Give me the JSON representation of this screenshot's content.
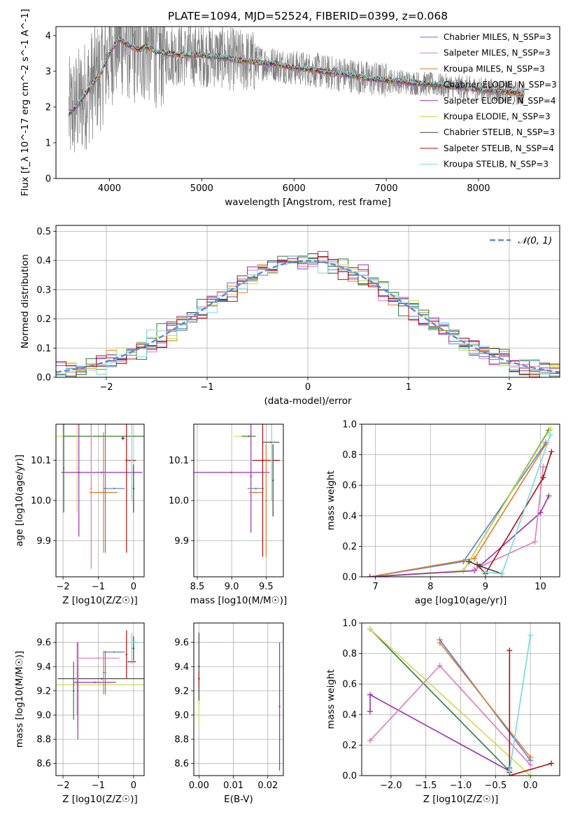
{
  "chart_data": [
    {
      "id": "spectrum",
      "type": "line",
      "title": "PLATE=1094, MJD=52524, FIBERID=0399, z=0.068",
      "xlabel": "wavelength [Angstrom, rest frame]",
      "ylabel": "Flux [f_λ 10^-17 erg cm^-2 s^-1 A^-1]",
      "xlim": [
        3420,
        8880
      ],
      "ylim": [
        0,
        4.25
      ],
      "xticks": [
        4000,
        5000,
        6000,
        7000,
        8000
      ],
      "yticks": [
        0,
        1,
        2,
        3,
        4
      ],
      "grid": false,
      "legend_position": "right",
      "data_color": "#808080",
      "continuum": [
        [
          3560,
          1.8
        ],
        [
          3700,
          2.2
        ],
        [
          3800,
          2.6
        ],
        [
          3900,
          2.9
        ],
        [
          4000,
          3.5
        ],
        [
          4100,
          3.9
        ],
        [
          4200,
          3.75
        ],
        [
          4300,
          3.6
        ],
        [
          4400,
          3.7
        ],
        [
          4500,
          3.55
        ],
        [
          4600,
          3.5
        ],
        [
          4800,
          3.45
        ],
        [
          5000,
          3.45
        ],
        [
          5200,
          3.4
        ],
        [
          5400,
          3.3
        ],
        [
          5600,
          3.25
        ],
        [
          5800,
          3.2
        ],
        [
          6000,
          3.1
        ],
        [
          6200,
          3.05
        ],
        [
          6400,
          2.95
        ],
        [
          6600,
          2.9
        ],
        [
          6800,
          2.8
        ],
        [
          7000,
          2.75
        ],
        [
          7200,
          2.7
        ],
        [
          7400,
          2.65
        ],
        [
          7600,
          2.6
        ],
        [
          7800,
          2.55
        ],
        [
          8000,
          2.5
        ],
        [
          8200,
          2.45
        ],
        [
          8400,
          2.4
        ],
        [
          8500,
          2.35
        ]
      ],
      "series": [
        {
          "name": "Chabrier MILES, N_SSP=3",
          "color": "#5b7bd5"
        },
        {
          "name": "Salpeter MILES, N_SSP=3",
          "color": "#e07ab5"
        },
        {
          "name": "Kroupa MILES, N_SSP=3",
          "color": "#e07c28"
        },
        {
          "name": "Chabrier ELODIE, N_SSP=3",
          "color": "#2f7a3a"
        },
        {
          "name": "Salpeter ELODIE, N_SSP=4",
          "color": "#9b30b5"
        },
        {
          "name": "Kroupa ELODIE, N_SSP=3",
          "color": "#c8e048"
        },
        {
          "name": "Chabrier STELIB, N_SSP=3",
          "color": "#404040"
        },
        {
          "name": "Salpeter STELIB, N_SSP=4",
          "color": "#b01010"
        },
        {
          "name": "Kroupa STELIB, N_SSP=3",
          "color": "#78d8e0"
        }
      ]
    },
    {
      "id": "residuals",
      "type": "step",
      "xlabel": "(data-model)/error",
      "ylabel": "Normed distribution",
      "xlim": [
        -2.5,
        2.5
      ],
      "ylim": [
        0,
        0.52
      ],
      "xticks": [
        -2,
        -1,
        0,
        1,
        2
      ],
      "yticks": [
        0.0,
        0.1,
        0.2,
        0.3,
        0.4,
        0.5
      ],
      "grid": true,
      "legend_position": "upper right",
      "gaussian_label": "𝒩(0, 1)",
      "gaussian_color": "#5b8bd5",
      "bin_width": 0.1,
      "bin_start": -2.5,
      "jitter": [
        0,
        0.015,
        -0.012,
        0.022,
        -0.018,
        0.01,
        -0.006,
        0.018,
        -0.02
      ],
      "colors": [
        "#5b7bd5",
        "#e07ab5",
        "#e07c28",
        "#2f7a3a",
        "#9b30b5",
        "#c8e048",
        "#404040",
        "#b01010",
        "#78d8e0"
      ]
    },
    {
      "id": "age_vs_Z",
      "type": "errorbar",
      "xlabel": "Z [log10(Z/Z☉)]",
      "ylabel": "age [log10(age/yr)]",
      "xlim": [
        -2.2,
        0.3
      ],
      "ylim": [
        9.81,
        10.19
      ],
      "xticks": [
        -2,
        -1,
        0
      ],
      "yticks": [
        9.9,
        10.0,
        10.1
      ],
      "grid": true,
      "points": [
        {
          "c": "#c8e048",
          "x": -0.95,
          "xe": 1.25,
          "y": 10.16,
          "ye": 0.0
        },
        {
          "c": "#2f7a3a",
          "x": -0.85,
          "xe": 1.15,
          "y": 10.16,
          "ye": 0.0
        },
        {
          "c": "#2f7a3a",
          "x": -1.98,
          "xe": 0.0,
          "y": 10.08,
          "ye": 0.11
        },
        {
          "c": "#c8e048",
          "x": -1.6,
          "xe": 0.0,
          "y": 10.08,
          "ye": 0.11
        },
        {
          "c": "#9b30b5",
          "x": -0.9,
          "xe": 1.15,
          "y": 10.07,
          "ye": 0.0
        },
        {
          "c": "#404040",
          "x": -0.3,
          "xe": 0.05,
          "y": 10.155,
          "ye": 0.005
        },
        {
          "c": "#e07ab5",
          "x": -1.2,
          "xe": 0.0,
          "y": 10.03,
          "ye": 0.2
        },
        {
          "c": "#9b30b5",
          "x": -1.55,
          "xe": 0.0,
          "y": 10.07,
          "ye": 0.16
        },
        {
          "c": "#5b7bd5",
          "x": -0.55,
          "xe": 0.3,
          "y": 10.03,
          "ye": 0.0
        },
        {
          "c": "#e07c28",
          "x": -0.85,
          "xe": 0.4,
          "y": 10.02,
          "ye": 0.0
        },
        {
          "c": "#e07c28",
          "x": -0.85,
          "xe": 0.0,
          "y": 10.02,
          "ye": 0.15
        },
        {
          "c": "#5b7bd5",
          "x": -0.8,
          "xe": 0.0,
          "y": 10.03,
          "ye": 0.16
        },
        {
          "c": "#b01010",
          "x": -0.2,
          "xe": 0.0,
          "y": 10.1,
          "ye": 0.23
        },
        {
          "c": "#b01010",
          "x": -0.05,
          "xe": 0.12,
          "y": 10.1,
          "ye": 0.0
        },
        {
          "c": "#78d8e0",
          "x": -0.05,
          "xe": 0.0,
          "y": 10.1,
          "ye": 0.1
        },
        {
          "c": "#404040",
          "x": 0.0,
          "xe": 0.0,
          "y": 10.03,
          "ye": 0.06
        }
      ]
    },
    {
      "id": "age_vs_mass",
      "type": "errorbar",
      "xlabel": "mass [log10(M/M☉)]",
      "ylabel": "",
      "xlim": [
        8.45,
        9.75
      ],
      "ylim": [
        9.81,
        10.19
      ],
      "xticks": [
        8.5,
        9.0,
        9.5
      ],
      "yticks": [
        9.9,
        10.0,
        10.1
      ],
      "grid": true,
      "points": [
        {
          "c": "#c8e048",
          "x": 9.15,
          "xe": 0.12,
          "y": 10.16,
          "ye": 0.0
        },
        {
          "c": "#2f7a3a",
          "x": 9.25,
          "xe": 0.1,
          "y": 10.16,
          "ye": 0.0
        },
        {
          "c": "#404040",
          "x": 9.57,
          "xe": 0.12,
          "y": 10.145,
          "ye": 0.0
        },
        {
          "c": "#b01010",
          "x": 9.5,
          "xe": 0.2,
          "y": 10.1,
          "ye": 0.0
        },
        {
          "c": "#9b30b5",
          "x": 9.0,
          "xe": 0.55,
          "y": 10.07,
          "ye": 0.0
        },
        {
          "c": "#9b30b5",
          "x": 9.28,
          "xe": 0.0,
          "y": 10.06,
          "ye": 0.14
        },
        {
          "c": "#5b7bd5",
          "x": 9.35,
          "xe": 0.12,
          "y": 10.03,
          "ye": 0.0
        },
        {
          "c": "#e07c28",
          "x": 9.35,
          "xe": 0.1,
          "y": 10.02,
          "ye": 0.0
        },
        {
          "c": "#b01010",
          "x": 9.45,
          "xe": 0.0,
          "y": 10.1,
          "ye": 0.24
        },
        {
          "c": "#e07c28",
          "x": 9.5,
          "xe": 0.0,
          "y": 10.0,
          "ye": 0.14
        },
        {
          "c": "#78d8e0",
          "x": 9.58,
          "xe": 0.0,
          "y": 10.1,
          "ye": 0.1
        },
        {
          "c": "#404040",
          "x": 9.6,
          "xe": 0.0,
          "y": 10.05,
          "ye": 0.09
        }
      ]
    },
    {
      "id": "weight_vs_age",
      "type": "line",
      "xlabel": "age [log10(age/yr)]",
      "ylabel": "mass weight",
      "xlim": [
        6.75,
        10.35
      ],
      "ylim": [
        0,
        1.0
      ],
      "xticks": [
        7,
        8,
        9,
        10
      ],
      "yticks": [
        0.0,
        0.2,
        0.4,
        0.6,
        0.8,
        1.0
      ],
      "grid": true,
      "series": [
        {
          "c": "#5b7bd5",
          "pts": [
            [
              6.9,
              0.0
            ],
            [
              8.6,
              0.1
            ],
            [
              10.1,
              0.88
            ]
          ]
        },
        {
          "c": "#e07c28",
          "pts": [
            [
              6.9,
              0.0
            ],
            [
              8.8,
              0.12
            ],
            [
              10.1,
              0.87
            ]
          ]
        },
        {
          "c": "#2f7a3a",
          "pts": [
            [
              6.9,
              0.0
            ],
            [
              8.6,
              0.04
            ],
            [
              10.15,
              0.96
            ]
          ]
        },
        {
          "c": "#c8e048",
          "pts": [
            [
              7.0,
              0.0
            ],
            [
              8.6,
              0.04
            ],
            [
              10.18,
              0.97
            ]
          ]
        },
        {
          "c": "#9b30b5",
          "pts": [
            [
              6.9,
              0.0
            ],
            [
              8.8,
              0.04
            ],
            [
              10.0,
              0.42
            ],
            [
              10.15,
              0.53
            ]
          ]
        },
        {
          "c": "#e07ab5",
          "pts": [
            [
              8.8,
              0.05
            ],
            [
              9.9,
              0.23
            ],
            [
              10.05,
              0.72
            ]
          ]
        },
        {
          "c": "#b01010",
          "pts": [
            [
              8.85,
              0.08
            ],
            [
              9.0,
              0.02
            ],
            [
              10.05,
              0.65
            ],
            [
              10.2,
              0.82
            ]
          ]
        },
        {
          "c": "#404040",
          "pts": [
            [
              8.7,
              0.1
            ],
            [
              8.9,
              0.07
            ],
            [
              9.3,
              0.02
            ]
          ]
        },
        {
          "c": "#78d8e0",
          "pts": [
            [
              9.0,
              0.03
            ],
            [
              9.3,
              0.02
            ],
            [
              10.18,
              0.93
            ]
          ]
        }
      ]
    },
    {
      "id": "mass_vs_Z",
      "type": "errorbar",
      "xlabel": "Z [log10(Z/Z☉)]",
      "ylabel": "mass [log10(M/M☉)]",
      "xlim": [
        -2.2,
        0.3
      ],
      "ylim": [
        8.5,
        9.76
      ],
      "xticks": [
        -2,
        -1,
        0
      ],
      "yticks": [
        8.6,
        8.8,
        9.0,
        9.2,
        9.4,
        9.6
      ],
      "grid": true,
      "points": [
        {
          "c": "#404040",
          "x": -0.9,
          "xe": 1.25,
          "y": 9.3,
          "ye": 0.0
        },
        {
          "c": "#c8e048",
          "x": -0.95,
          "xe": 1.25,
          "y": 9.25,
          "ye": 0.0
        },
        {
          "c": "#2f7a3a",
          "x": -1.7,
          "xe": 0.0,
          "y": 9.2,
          "ye": 0.24
        },
        {
          "c": "#c8e048",
          "x": -1.58,
          "xe": 0.0,
          "y": 9.15,
          "ye": 0.25
        },
        {
          "c": "#9b30b5",
          "x": -1.58,
          "xe": 0.0,
          "y": 9.2,
          "ye": 0.4
        },
        {
          "c": "#e07ab5",
          "x": -1.6,
          "xe": 0.0,
          "y": 9.3,
          "ye": 0.3
        },
        {
          "c": "#e07ab5",
          "x": -1.0,
          "xe": 0.6,
          "y": 9.47,
          "ye": 0.0
        },
        {
          "c": "#9b30b5",
          "x": -1.1,
          "xe": 0.6,
          "y": 9.27,
          "ye": 0.0
        },
        {
          "c": "#5b7bd5",
          "x": -0.8,
          "xe": 0.0,
          "y": 9.35,
          "ye": 0.18
        },
        {
          "c": "#e07c28",
          "x": -0.85,
          "xe": 0.0,
          "y": 9.35,
          "ye": 0.18
        },
        {
          "c": "#5b7bd5",
          "x": -0.55,
          "xe": 0.3,
          "y": 9.52,
          "ye": 0.0
        },
        {
          "c": "#b01010",
          "x": -0.2,
          "xe": 0.0,
          "y": 9.5,
          "ye": 0.2
        },
        {
          "c": "#b01010",
          "x": -0.05,
          "xe": 0.12,
          "y": 9.44,
          "ye": 0.0
        },
        {
          "c": "#78d8e0",
          "x": -0.05,
          "xe": 0.0,
          "y": 9.55,
          "ye": 0.13
        },
        {
          "c": "#404040",
          "x": 0.0,
          "xe": 0.0,
          "y": 9.55,
          "ye": 0.1
        },
        {
          "c": "#78d8e0",
          "x": 0.05,
          "xe": 0.12,
          "y": 9.6,
          "ye": 0.0
        }
      ]
    },
    {
      "id": "mass_vs_ebv",
      "type": "errorbar",
      "xlabel": "E(B-V)",
      "ylabel": "",
      "xlim": [
        -0.0015,
        0.0245
      ],
      "ylim": [
        8.5,
        9.76
      ],
      "xticks": [
        0.0,
        0.01,
        0.02
      ],
      "yticks": [
        8.6,
        8.8,
        9.0,
        9.2,
        9.4,
        9.6
      ],
      "grid": true,
      "points": [
        {
          "c": "#c8e048",
          "x": 0.0,
          "xe": 0.0,
          "y": 9.1,
          "ye": 0.2
        },
        {
          "c": "#404040",
          "x": 0.0,
          "xe": 0.0,
          "y": 9.4,
          "ye": 0.28
        },
        {
          "c": "#b01010",
          "x": 0.0,
          "xe": 0.0,
          "y": 9.3,
          "ye": 0.06
        },
        {
          "c": "#9b30b5",
          "x": 0.0234,
          "xe": 0.0,
          "y": 9.07,
          "ye": 0.53
        }
      ]
    },
    {
      "id": "weight_vs_Z",
      "type": "line",
      "xlabel": "Z [log10(Z/Z☉)]",
      "ylabel": "mass weight",
      "xlim": [
        -2.42,
        0.42
      ],
      "ylim": [
        0,
        1.0
      ],
      "xticks": [
        -2.0,
        -1.5,
        -1.0,
        -0.5,
        0.0
      ],
      "yticks": [
        0.0,
        0.2,
        0.4,
        0.6,
        0.8,
        1.0
      ],
      "grid": true,
      "series": [
        {
          "c": "#5b7bd5",
          "pts": [
            [
              -1.3,
              0.89
            ],
            [
              0.0,
              0.1
            ]
          ]
        },
        {
          "c": "#e07c28",
          "pts": [
            [
              -1.3,
              0.87
            ],
            [
              0.0,
              0.12
            ]
          ]
        },
        {
          "c": "#2f7a3a",
          "pts": [
            [
              -2.3,
              0.96
            ],
            [
              -0.3,
              0.03
            ]
          ]
        },
        {
          "c": "#c8e048",
          "pts": [
            [
              -2.3,
              0.96
            ],
            [
              0.0,
              0.0
            ]
          ]
        },
        {
          "c": "#9b30b5",
          "pts": [
            [
              -2.3,
              0.42
            ],
            [
              -2.3,
              0.53
            ],
            [
              -0.3,
              0.03
            ]
          ]
        },
        {
          "c": "#e07ab5",
          "pts": [
            [
              -2.3,
              0.23
            ],
            [
              -1.3,
              0.72
            ],
            [
              0.0,
              0.07
            ]
          ]
        },
        {
          "c": "#b01010",
          "pts": [
            [
              -0.3,
              0.82
            ],
            [
              -0.3,
              0.0
            ],
            [
              0.3,
              0.08
            ]
          ]
        },
        {
          "c": "#404040",
          "pts": [
            [
              -0.3,
              0.02
            ],
            [
              -0.3,
              0.05
            ]
          ]
        },
        {
          "c": "#78d8e0",
          "pts": [
            [
              -0.3,
              0.03
            ],
            [
              0.0,
              0.92
            ]
          ]
        }
      ]
    }
  ]
}
